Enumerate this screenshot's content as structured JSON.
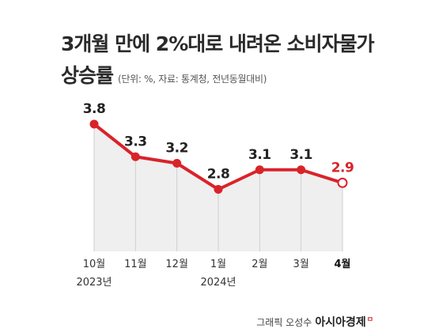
{
  "title": {
    "line1": "3개월 만에 2%대로 내려온 소비자물가",
    "line2": "상승률",
    "subtitle": "(단위: %, 자료: 통계청, 전년동월대비)"
  },
  "credit": {
    "label": "그래픽 오성수",
    "brand": "아시아경제",
    "mark": "ㅁ"
  },
  "colors": {
    "line": "#d9232a",
    "area": "#efefef",
    "highlight": "#d9232a",
    "gridline": "#cfcfcf"
  },
  "chart_data": {
    "type": "line",
    "categories": [
      "10월",
      "11월",
      "12월",
      "1월",
      "2월",
      "3월",
      "4월"
    ],
    "year_labels": [
      {
        "category": "10월",
        "text": "2023년"
      },
      {
        "category": "1월",
        "text": "2024년"
      }
    ],
    "values": [
      3.8,
      3.3,
      3.2,
      2.8,
      3.1,
      3.1,
      2.9
    ],
    "data_labels": [
      "3.8",
      "3.3",
      "3.2",
      "2.8",
      "3.1",
      "3.1",
      "2.9"
    ],
    "highlight_index": 6,
    "area_fill": true,
    "grid": false,
    "legend": "none"
  }
}
